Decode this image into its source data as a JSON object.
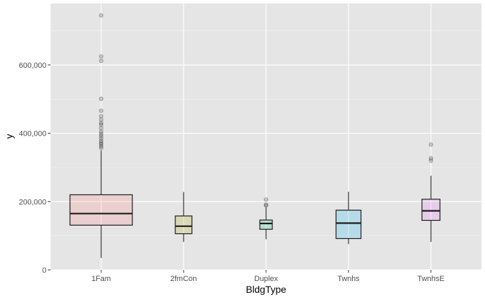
{
  "chart_data": {
    "type": "boxplot",
    "title": "",
    "xlabel": "BldgType",
    "ylabel": "y",
    "ylim": [
      0,
      780000
    ],
    "y_ticks": [
      0,
      200000,
      400000,
      600000
    ],
    "y_tick_labels": [
      "0",
      "200,000",
      "400,000",
      "600,000"
    ],
    "grid": true,
    "legend": "none",
    "categories": [
      "1Fam",
      "2fmCon",
      "Duplex",
      "Twnhs",
      "TwnhsE"
    ],
    "boxes": [
      {
        "category": "1Fam",
        "color": "#f8766d",
        "min": 35000,
        "q1": 131000,
        "median": 165000,
        "q3": 220000,
        "max": 350000,
        "outliers": [
          745000,
          625000,
          612000,
          501000,
          466000,
          450000,
          440000,
          430000,
          425000,
          415000,
          405000,
          398000,
          392000,
          385000,
          378000,
          372000,
          368000,
          362000,
          357000
        ]
      },
      {
        "category": "2fmCon",
        "color": "#a3a500",
        "min": 82000,
        "q1": 106000,
        "median": 128000,
        "q3": 158000,
        "max": 228000,
        "outliers": []
      },
      {
        "category": "Duplex",
        "color": "#00bf7d",
        "min": 90000,
        "q1": 119000,
        "median": 136000,
        "q3": 146000,
        "max": 183000,
        "outliers": [
          206000,
          191000,
          189000
        ]
      },
      {
        "category": "Twnhs",
        "color": "#00b0f6",
        "min": 76000,
        "q1": 92000,
        "median": 137000,
        "q3": 175000,
        "max": 229000,
        "outliers": []
      },
      {
        "category": "TwnhsE",
        "color": "#e76bf3",
        "min": 82000,
        "q1": 145000,
        "median": 173000,
        "q3": 207000,
        "max": 276000,
        "outliers": [
          367000,
          327000,
          320000
        ]
      }
    ]
  }
}
